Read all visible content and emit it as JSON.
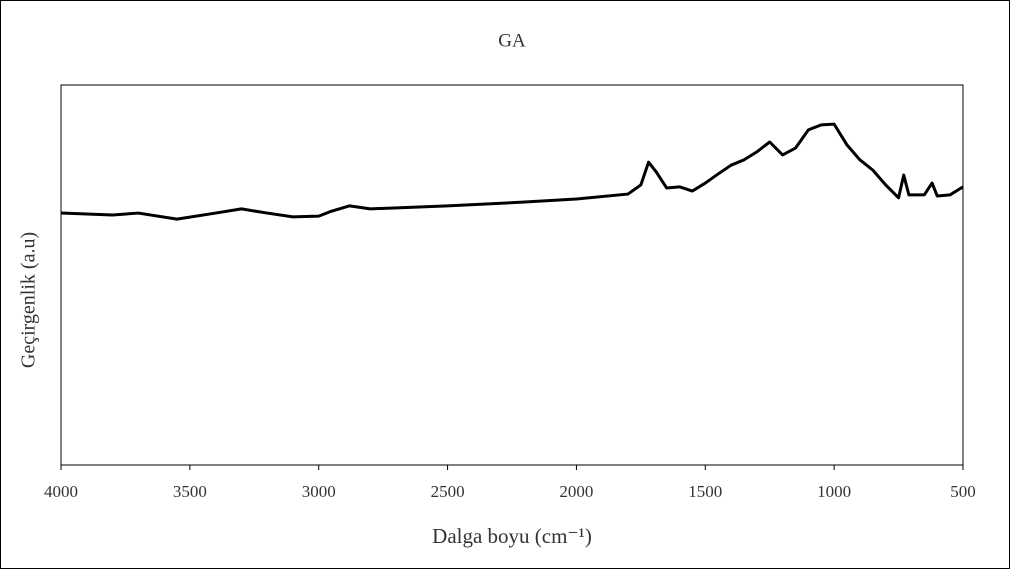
{
  "chart_data": {
    "type": "line",
    "title": "GA",
    "x_label": "Dalga boyu (cm⁻¹)",
    "y_label": "Geçirgenlik (a.u)",
    "x": [
      4000,
      3800,
      3700,
      3550,
      3400,
      3300,
      3200,
      3100,
      3000,
      2950,
      2880,
      2800,
      2500,
      2200,
      2000,
      1800,
      1750,
      1720,
      1690,
      1650,
      1600,
      1550,
      1500,
      1450,
      1400,
      1350,
      1300,
      1250,
      1200,
      1150,
      1100,
      1050,
      1000,
      950,
      900,
      850,
      800,
      750,
      730,
      710,
      650,
      620,
      600,
      550,
      500
    ],
    "values": [
      66.3,
      65.8,
      66.3,
      64.7,
      66.3,
      67.4,
      66.3,
      65.3,
      65.5,
      66.8,
      68.2,
      67.4,
      68.2,
      69.2,
      70.0,
      71.3,
      73.7,
      79.7,
      77.1,
      72.9,
      73.2,
      72.1,
      74.2,
      76.6,
      78.9,
      80.3,
      82.4,
      85.0,
      81.6,
      83.4,
      88.2,
      89.5,
      89.7,
      84.2,
      80.3,
      77.6,
      73.7,
      70.3,
      76.3,
      71.1,
      71.1,
      74.2,
      70.8,
      71.1,
      73.2
    ],
    "color": "#000000",
    "xlim": [
      4000,
      500
    ],
    "xticks": [
      4000,
      3500,
      3000,
      2500,
      2000,
      1500,
      1000,
      500
    ],
    "ylim": [
      0,
      100
    ]
  }
}
